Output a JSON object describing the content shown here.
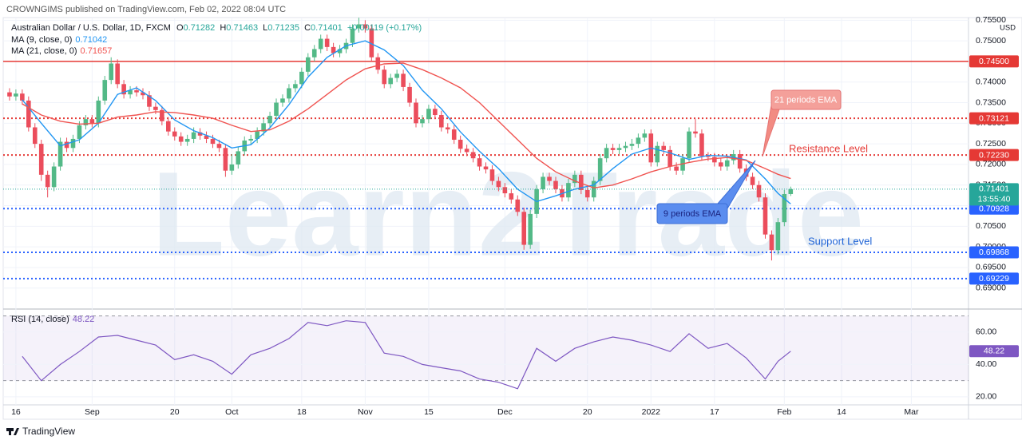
{
  "header": {
    "published": "CROWNGIMS published on TradingView.com, Feb 02, 2022 08:04 UTC"
  },
  "footer": {
    "brand": "TradingView"
  },
  "chart_data": [
    {
      "type": "candlestick",
      "symbol": "Australian Dollar / U.S. Dollar, 1D, FXCM",
      "ohlc": [
        {
          "key": "O",
          "value": 0.71282
        },
        {
          "key": "H",
          "value": 0.71463
        },
        {
          "key": "L",
          "value": 0.71235
        },
        {
          "key": "C",
          "value": 0.71401
        }
      ],
      "change": "+0.00119 (+0.17%)",
      "currency": "USD",
      "watermark": "Learn2Trade",
      "up_color": "#53b987",
      "down_color": "#eb4d5c",
      "grid": true,
      "xlim": [
        -1,
        151
      ],
      "xticks": [
        {
          "value": 1,
          "label": "16"
        },
        {
          "value": 13,
          "label": "Sep"
        },
        {
          "value": 26,
          "label": "20"
        },
        {
          "value": 35,
          "label": "Oct"
        },
        {
          "value": 46,
          "label": "18"
        },
        {
          "value": 56,
          "label": "Nov"
        },
        {
          "value": 66,
          "label": "15"
        },
        {
          "value": 78,
          "label": "Dec"
        },
        {
          "value": 91,
          "label": "20"
        },
        {
          "value": 101,
          "label": "2022"
        },
        {
          "value": 111,
          "label": "17"
        },
        {
          "value": 122,
          "label": "Feb"
        },
        {
          "value": 131,
          "label": "14"
        },
        {
          "value": 142,
          "label": "Mar"
        }
      ],
      "ylim": [
        0.6853,
        0.757
      ],
      "yticks": [
        {
          "value": 0.69,
          "label": "0.69000"
        },
        {
          "value": 0.695,
          "label": "0.69500"
        },
        {
          "value": 0.7,
          "label": "0.70000"
        },
        {
          "value": 0.705,
          "label": "0.70500"
        },
        {
          "value": 0.71,
          "label": "0.71000"
        },
        {
          "value": 0.715,
          "label": "0.71500"
        },
        {
          "value": 0.72,
          "label": "0.72000"
        },
        {
          "value": 0.725,
          "label": "0.72500"
        },
        {
          "value": 0.73,
          "label": "0.73000"
        },
        {
          "value": 0.735,
          "label": "0.73500"
        },
        {
          "value": 0.74,
          "label": "0.74000"
        },
        {
          "value": 0.745,
          "label": "0.74500"
        },
        {
          "value": 0.75,
          "label": "0.75000"
        },
        {
          "value": 0.755,
          "label": "0.75500"
        }
      ],
      "open": [
        0.7375,
        0.7365,
        0.7372,
        0.7355,
        0.729,
        0.725,
        0.7175,
        0.7145,
        0.7195,
        0.7255,
        0.724,
        0.7262,
        0.7295,
        0.731,
        0.73,
        0.7355,
        0.7405,
        0.7445,
        0.7395,
        0.737,
        0.738,
        0.7375,
        0.7368,
        0.734,
        0.7332,
        0.7305,
        0.728,
        0.7268,
        0.7255,
        0.7262,
        0.7278,
        0.727,
        0.7262,
        0.725,
        0.724,
        0.7185,
        0.72,
        0.7232,
        0.7258,
        0.7262,
        0.728,
        0.73,
        0.7318,
        0.735,
        0.736,
        0.7385,
        0.7395,
        0.7425,
        0.746,
        0.748,
        0.7505,
        0.7485,
        0.747,
        0.748,
        0.7495,
        0.753,
        0.754,
        0.753,
        0.746,
        0.743,
        0.7395,
        0.741,
        0.742,
        0.7388,
        0.735,
        0.73,
        0.731,
        0.7335,
        0.732,
        0.729,
        0.7285,
        0.726,
        0.7238,
        0.723,
        0.7215,
        0.7195,
        0.7188,
        0.716,
        0.7145,
        0.713,
        0.7115,
        0.7085,
        0.7005,
        0.708,
        0.714,
        0.717,
        0.716,
        0.714,
        0.712,
        0.7155,
        0.7175,
        0.7138,
        0.712,
        0.716,
        0.7215,
        0.724,
        0.7235,
        0.724,
        0.7245,
        0.725,
        0.7265,
        0.7275,
        0.7205,
        0.7245,
        0.7235,
        0.7195,
        0.7185,
        0.7215,
        0.728,
        0.7275,
        0.722,
        0.7218,
        0.7205,
        0.7195,
        0.721,
        0.7225,
        0.719,
        0.717,
        0.715,
        0.712,
        0.703,
        0.6992,
        0.706,
        0.71282
      ],
      "high": [
        0.7385,
        0.7382,
        0.7382,
        0.7365,
        0.73,
        0.726,
        0.7185,
        0.7205,
        0.7265,
        0.7265,
        0.7272,
        0.7305,
        0.732,
        0.732,
        0.7365,
        0.7415,
        0.746,
        0.7455,
        0.7405,
        0.739,
        0.739,
        0.7385,
        0.7378,
        0.735,
        0.7342,
        0.7315,
        0.729,
        0.7278,
        0.7272,
        0.729,
        0.7288,
        0.728,
        0.7272,
        0.726,
        0.725,
        0.7225,
        0.7242,
        0.7268,
        0.7272,
        0.729,
        0.731,
        0.7328,
        0.736,
        0.737,
        0.7395,
        0.7405,
        0.7435,
        0.747,
        0.749,
        0.7515,
        0.7515,
        0.7495,
        0.749,
        0.7505,
        0.754,
        0.7556,
        0.755,
        0.754,
        0.747,
        0.744,
        0.742,
        0.743,
        0.743,
        0.7398,
        0.736,
        0.732,
        0.7345,
        0.7345,
        0.733,
        0.73,
        0.7295,
        0.727,
        0.7248,
        0.724,
        0.7225,
        0.7205,
        0.7198,
        0.717,
        0.7155,
        0.714,
        0.7125,
        0.7095,
        0.709,
        0.715,
        0.718,
        0.718,
        0.717,
        0.715,
        0.7165,
        0.7185,
        0.7185,
        0.7148,
        0.717,
        0.7225,
        0.725,
        0.725,
        0.725,
        0.7255,
        0.7262,
        0.7275,
        0.7285,
        0.7285,
        0.7255,
        0.7255,
        0.7245,
        0.7205,
        0.7225,
        0.729,
        0.731,
        0.7285,
        0.723,
        0.7228,
        0.7215,
        0.722,
        0.7235,
        0.7235,
        0.72,
        0.718,
        0.716,
        0.713,
        0.704,
        0.707,
        0.7138,
        0.71463
      ],
      "low": [
        0.7355,
        0.7355,
        0.7345,
        0.728,
        0.724,
        0.716,
        0.712,
        0.7135,
        0.7185,
        0.723,
        0.723,
        0.7252,
        0.7285,
        0.729,
        0.729,
        0.7345,
        0.7395,
        0.7385,
        0.736,
        0.736,
        0.7365,
        0.7358,
        0.733,
        0.7322,
        0.7295,
        0.727,
        0.7258,
        0.7245,
        0.7245,
        0.7252,
        0.726,
        0.7252,
        0.724,
        0.723,
        0.717,
        0.7175,
        0.719,
        0.7222,
        0.7248,
        0.7252,
        0.727,
        0.729,
        0.7308,
        0.734,
        0.735,
        0.7375,
        0.7385,
        0.7415,
        0.745,
        0.747,
        0.7475,
        0.746,
        0.746,
        0.747,
        0.7485,
        0.752,
        0.752,
        0.745,
        0.742,
        0.7385,
        0.7385,
        0.74,
        0.7378,
        0.734,
        0.729,
        0.729,
        0.73,
        0.731,
        0.728,
        0.7275,
        0.725,
        0.7228,
        0.722,
        0.7205,
        0.7185,
        0.7178,
        0.715,
        0.7135,
        0.712,
        0.7105,
        0.7075,
        0.6993,
        0.6995,
        0.707,
        0.713,
        0.715,
        0.713,
        0.711,
        0.711,
        0.7145,
        0.7128,
        0.711,
        0.711,
        0.715,
        0.7205,
        0.7225,
        0.7225,
        0.723,
        0.7235,
        0.724,
        0.7255,
        0.7195,
        0.7195,
        0.7225,
        0.7185,
        0.7175,
        0.7175,
        0.7205,
        0.7265,
        0.721,
        0.7208,
        0.7195,
        0.7185,
        0.7185,
        0.72,
        0.718,
        0.716,
        0.714,
        0.711,
        0.702,
        0.6967,
        0.6982,
        0.705,
        0.71235
      ],
      "close": [
        0.7365,
        0.7372,
        0.7355,
        0.729,
        0.725,
        0.7175,
        0.7145,
        0.7195,
        0.7255,
        0.724,
        0.7262,
        0.7295,
        0.731,
        0.73,
        0.7355,
        0.7405,
        0.7445,
        0.7395,
        0.737,
        0.738,
        0.7375,
        0.7368,
        0.734,
        0.7332,
        0.7305,
        0.728,
        0.7268,
        0.7255,
        0.7262,
        0.7278,
        0.727,
        0.7262,
        0.725,
        0.724,
        0.7185,
        0.72,
        0.7232,
        0.7258,
        0.7262,
        0.728,
        0.73,
        0.7318,
        0.735,
        0.736,
        0.7385,
        0.7395,
        0.7425,
        0.746,
        0.748,
        0.7505,
        0.7485,
        0.747,
        0.748,
        0.7495,
        0.753,
        0.754,
        0.753,
        0.746,
        0.743,
        0.7395,
        0.741,
        0.742,
        0.7388,
        0.735,
        0.73,
        0.731,
        0.7335,
        0.732,
        0.729,
        0.7285,
        0.726,
        0.7238,
        0.723,
        0.7215,
        0.7195,
        0.7188,
        0.716,
        0.7145,
        0.713,
        0.7115,
        0.7085,
        0.7005,
        0.708,
        0.714,
        0.717,
        0.716,
        0.714,
        0.712,
        0.7155,
        0.7175,
        0.7138,
        0.712,
        0.716,
        0.7215,
        0.724,
        0.7235,
        0.724,
        0.7245,
        0.725,
        0.7265,
        0.7275,
        0.7205,
        0.7245,
        0.7235,
        0.7195,
        0.7185,
        0.7215,
        0.728,
        0.7275,
        0.722,
        0.7218,
        0.7205,
        0.7195,
        0.721,
        0.7225,
        0.719,
        0.717,
        0.715,
        0.712,
        0.703,
        0.6992,
        0.706,
        0.71282,
        0.71401
      ],
      "series": [
        {
          "name": "MA (9, close, 0)",
          "color": "#2196f3",
          "x": [
            2,
            5,
            8,
            11,
            14,
            17,
            20,
            23,
            26,
            29,
            32,
            35,
            38,
            41,
            44,
            47,
            50,
            53,
            56,
            59,
            62,
            65,
            68,
            71,
            74,
            77,
            80,
            83,
            86,
            89,
            92,
            95,
            98,
            101,
            104,
            107,
            110,
            113,
            116,
            119,
            121,
            123
          ],
          "values": [
            0.7357,
            0.73,
            0.7245,
            0.726,
            0.73,
            0.737,
            0.7386,
            0.7355,
            0.7308,
            0.7282,
            0.7265,
            0.724,
            0.7248,
            0.7289,
            0.7345,
            0.7412,
            0.746,
            0.7488,
            0.75,
            0.7478,
            0.744,
            0.738,
            0.7335,
            0.7279,
            0.7232,
            0.719,
            0.714,
            0.711,
            0.7124,
            0.714,
            0.715,
            0.719,
            0.7225,
            0.724,
            0.7228,
            0.7212,
            0.7222,
            0.722,
            0.7211,
            0.7165,
            0.713,
            0.71042
          ]
        },
        {
          "name": "MA (21, close, 0)",
          "color": "#f05350",
          "x": [
            2,
            5,
            8,
            11,
            14,
            17,
            20,
            23,
            26,
            29,
            32,
            35,
            38,
            41,
            44,
            47,
            50,
            53,
            56,
            59,
            62,
            65,
            68,
            71,
            74,
            77,
            80,
            83,
            86,
            89,
            92,
            95,
            98,
            101,
            104,
            107,
            110,
            113,
            116,
            119,
            121,
            123
          ],
          "values": [
            0.7347,
            0.732,
            0.7305,
            0.7298,
            0.73,
            0.7315,
            0.732,
            0.7328,
            0.7326,
            0.732,
            0.7312,
            0.7295,
            0.728,
            0.7284,
            0.7305,
            0.7335,
            0.737,
            0.7405,
            0.7432,
            0.7444,
            0.7446,
            0.743,
            0.741,
            0.7386,
            0.735,
            0.7305,
            0.726,
            0.7215,
            0.7182,
            0.716,
            0.7143,
            0.715,
            0.7165,
            0.7182,
            0.7195,
            0.7205,
            0.7213,
            0.7217,
            0.721,
            0.719,
            0.7176,
            0.71657
          ]
        }
      ],
      "price_lines": [
        {
          "value": 0.745,
          "label": "0.74500",
          "color": "#e53935",
          "style": "solid"
        },
        {
          "value": 0.73121,
          "label": "0.73121",
          "color": "#e53935",
          "style": "dotted"
        },
        {
          "value": 0.7223,
          "label": "0.72230",
          "color": "#e53935",
          "style": "dotted"
        },
        {
          "value": 0.70928,
          "label": "0.70928",
          "color": "#2962ff",
          "style": "dotted"
        },
        {
          "value": 0.69868,
          "label": "0.69868",
          "color": "#2962ff",
          "style": "dotted"
        },
        {
          "value": 0.69229,
          "label": "0.69229",
          "color": "#2962ff",
          "style": "dotted"
        }
      ],
      "last_price": {
        "value": 0.71401,
        "countdown": "13:55:40",
        "color": "#26a69a"
      },
      "annotations": [
        "21 periods EMA",
        "9 periods EMA",
        "Resistance Level",
        "Support Level"
      ]
    },
    {
      "type": "line",
      "name": "RSI (14, close)",
      "color": "#7e57c2",
      "band": [
        30,
        70
      ],
      "xlim": [
        -1,
        151
      ],
      "ylim": [
        16,
        72.8
      ],
      "yticks": [
        {
          "value": 20,
          "label": "20.00"
        },
        {
          "value": 40,
          "label": "40.00"
        },
        {
          "value": 60,
          "label": "60.00"
        }
      ],
      "x": [
        2,
        5,
        8,
        11,
        14,
        17,
        20,
        23,
        26,
        29,
        32,
        35,
        38,
        41,
        44,
        47,
        50,
        53,
        56,
        59,
        62,
        65,
        68,
        71,
        74,
        77,
        80,
        83,
        86,
        89,
        92,
        95,
        98,
        101,
        104,
        107,
        110,
        113,
        116,
        119,
        121,
        123
      ],
      "values": [
        45,
        30,
        40,
        48,
        57,
        58,
        55,
        52,
        43,
        46,
        42,
        34,
        46,
        50,
        56,
        66,
        64,
        67,
        66,
        47,
        45,
        40,
        38,
        36,
        31,
        29,
        25,
        50,
        42,
        50,
        54,
        57,
        55,
        52,
        48,
        59,
        50,
        53,
        44,
        31,
        42,
        48.22
      ]
    }
  ]
}
